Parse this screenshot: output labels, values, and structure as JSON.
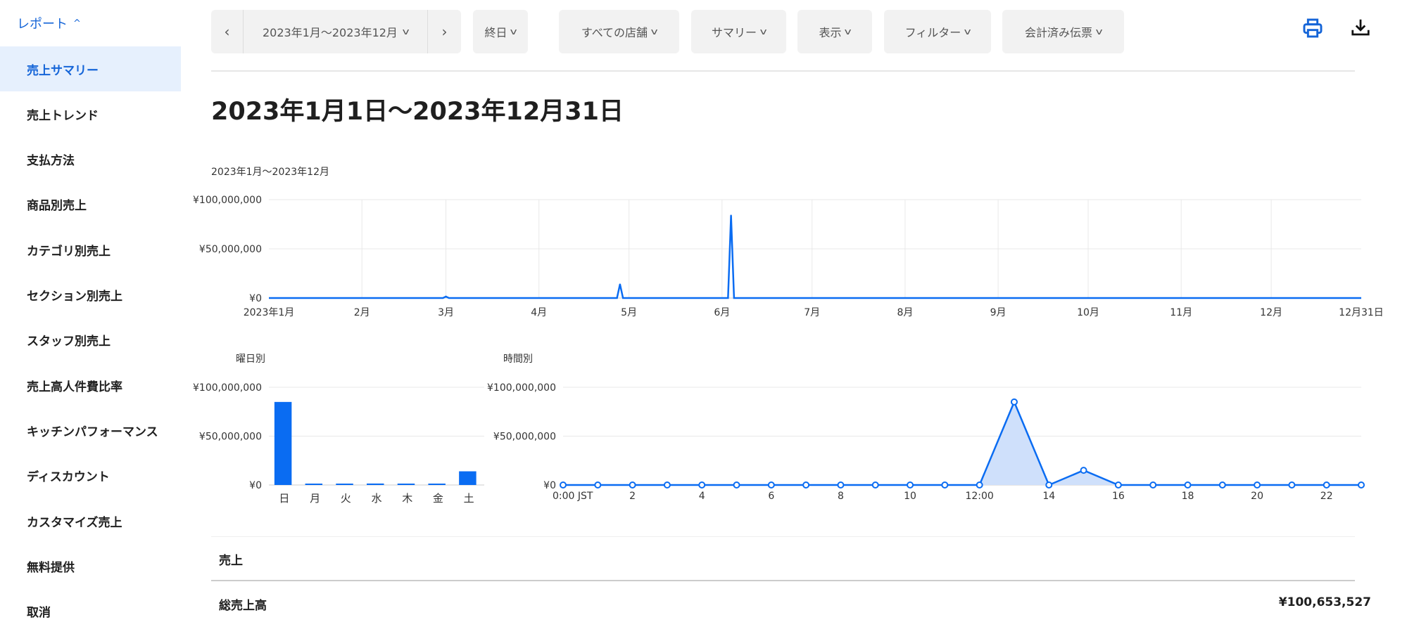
{
  "sidebar": {
    "header": "レポート",
    "items": [
      {
        "label": "売上サマリー",
        "active": true
      },
      {
        "label": "売上トレンド"
      },
      {
        "label": "支払方法"
      },
      {
        "label": "商品別売上"
      },
      {
        "label": "カテゴリ別売上"
      },
      {
        "label": "セクション別売上"
      },
      {
        "label": "スタッフ別売上"
      },
      {
        "label": "売上高人件費比率"
      },
      {
        "label": "キッチンパフォーマンス"
      },
      {
        "label": "ディスカウント"
      },
      {
        "label": "カスタマイズ売上"
      },
      {
        "label": "無料提供"
      },
      {
        "label": "取消"
      }
    ]
  },
  "toolbar": {
    "date_range": "2023年1月〜2023年12月",
    "time": "終日",
    "stores": "すべての店舗",
    "summary": "サマリー",
    "display": "表示",
    "filter": "フィルター",
    "receipts": "会計済み伝票",
    "icons": [
      "chevron-left-icon",
      "chevron-right-icon",
      "print-icon",
      "download-icon"
    ]
  },
  "page_title": "2023年1月1日〜2023年12月31日",
  "colors": {
    "accent": "#0a6cf2",
    "area_fill": "#cfe0fb",
    "active_bg": "#e6f0fd"
  },
  "chart_data": [
    {
      "type": "line",
      "subtitle": "2023年1月〜2023年12月",
      "x_range": [
        "2023-01-01",
        "2023-12-31"
      ],
      "ylim": [
        0,
        100000000
      ],
      "y_ticks": [
        "¥0",
        "¥50,000,000",
        "¥100,000,000"
      ],
      "x_ticks": [
        "2023年1月",
        "2月",
        "3月",
        "4月",
        "5月",
        "6月",
        "7月",
        "8月",
        "9月",
        "10月",
        "11月",
        "12月",
        "12月31日"
      ],
      "baseline_value": 0,
      "points": [
        {
          "date": "2023-03-01",
          "value": 1500000
        },
        {
          "date": "2023-04-28",
          "value": 14000000
        },
        {
          "date": "2023-06-04",
          "value": 84000000
        }
      ],
      "grid": true
    },
    {
      "type": "bar",
      "subtitle": "曜日別",
      "categories": [
        "日",
        "月",
        "火",
        "水",
        "木",
        "金",
        "土"
      ],
      "values": [
        85000000,
        1000000,
        1000000,
        1500000,
        1000000,
        1000000,
        14000000
      ],
      "ylim": [
        0,
        100000000
      ],
      "y_ticks": [
        "¥0",
        "¥50,000,000",
        "¥100,000,000"
      ],
      "grid": true
    },
    {
      "type": "area",
      "subtitle": "時間別",
      "x": [
        0,
        1,
        2,
        3,
        4,
        5,
        6,
        7,
        8,
        9,
        10,
        11,
        12,
        13,
        14,
        15,
        16,
        17,
        18,
        19,
        20,
        21,
        22,
        23
      ],
      "values": [
        0,
        0,
        0,
        0,
        0,
        0,
        0,
        0,
        0,
        0,
        0,
        0,
        0,
        85000000,
        0,
        15000000,
        0,
        0,
        0,
        0,
        0,
        0,
        0,
        0
      ],
      "ylim": [
        0,
        100000000
      ],
      "y_ticks": [
        "¥0",
        "¥50,000,000",
        "¥100,000,000"
      ],
      "x_ticks": [
        "0:00 JST",
        "2",
        "4",
        "6",
        "8",
        "10",
        "12:00",
        "14",
        "16",
        "18",
        "20",
        "22"
      ],
      "grid": true
    }
  ],
  "sales": {
    "section_label": "売上",
    "total_label": "総売上高",
    "total_value": "¥100,653,527"
  }
}
